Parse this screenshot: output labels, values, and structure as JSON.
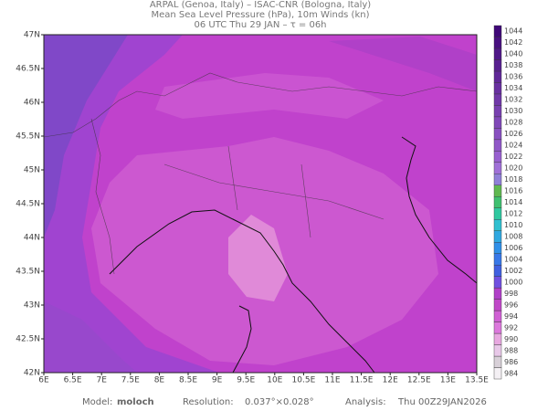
{
  "header": {
    "line1": "ARPAL (Genoa, Italy)  –  ISAC-CNR (Bologna, Italy)",
    "line2": "Mean Sea Level Pressure (hPa), 10m Winds (kn)",
    "line3": "06 UTC Thu 29 JAN  –  τ = 06h"
  },
  "map": {
    "lonlim": [
      6,
      13.5
    ],
    "latlim": [
      42,
      47
    ],
    "lon_ticks": [
      {
        "value": 6,
        "label": "6E"
      },
      {
        "value": 6.5,
        "label": "6.5E"
      },
      {
        "value": 7,
        "label": "7E"
      },
      {
        "value": 7.5,
        "label": "7.5E"
      },
      {
        "value": 8,
        "label": "8E"
      },
      {
        "value": 8.5,
        "label": "8.5E"
      },
      {
        "value": 9,
        "label": "9E"
      },
      {
        "value": 9.5,
        "label": "9.5E"
      },
      {
        "value": 10,
        "label": "10E"
      },
      {
        "value": 10.5,
        "label": "10.5E"
      },
      {
        "value": 11,
        "label": "11E"
      },
      {
        "value": 11.5,
        "label": "11.5E"
      },
      {
        "value": 12,
        "label": "12E"
      },
      {
        "value": 12.5,
        "label": "12.5E"
      },
      {
        "value": 13,
        "label": "13E"
      },
      {
        "value": 13.5,
        "label": "13.5E"
      }
    ],
    "lat_ticks": [
      {
        "value": 42,
        "label": "42N"
      },
      {
        "value": 42.5,
        "label": "42.5N"
      },
      {
        "value": 43,
        "label": "43N"
      },
      {
        "value": 43.5,
        "label": "43.5N"
      },
      {
        "value": 44,
        "label": "44N"
      },
      {
        "value": 44.5,
        "label": "44.5N"
      },
      {
        "value": 45,
        "label": "45N"
      },
      {
        "value": 45.5,
        "label": "45.5N"
      },
      {
        "value": 46,
        "label": "46N"
      },
      {
        "value": 46.5,
        "label": "46.5N"
      },
      {
        "value": 47,
        "label": "47N"
      }
    ]
  },
  "colorbar": {
    "levels": [
      984,
      986,
      988,
      990,
      992,
      994,
      996,
      998,
      1000,
      1002,
      1004,
      1006,
      1008,
      1010,
      1012,
      1014,
      1016,
      1018,
      1020,
      1022,
      1024,
      1026,
      1028,
      1030,
      1032,
      1034,
      1036,
      1038,
      1040,
      1042,
      1044
    ],
    "colors": [
      "#f4f0f4",
      "#d8d0d8",
      "#e8c8e8",
      "#e8a8e0",
      "#dc78dc",
      "#d060d4",
      "#c048c8",
      "#b040c8",
      "#7050e0",
      "#4060e0",
      "#3878e8",
      "#3090e8",
      "#30a8e0",
      "#30c0d0",
      "#30c8a0",
      "#40c070",
      "#60b850",
      "#9080d8",
      "#a070d8",
      "#9860d0",
      "#9058c8",
      "#8850c0",
      "#8048b8",
      "#7840b0",
      "#7038a8",
      "#6830a0",
      "#602898",
      "#582090",
      "#501888",
      "#481080",
      "#400878"
    ]
  },
  "footer": {
    "model_label": "Model:",
    "model": "moloch",
    "resolution_label": "Resolution:",
    "resolution": "0.037°×0.028°",
    "analysis_label": "Analysis:",
    "analysis": "Thu 00Z29JAN2026"
  }
}
